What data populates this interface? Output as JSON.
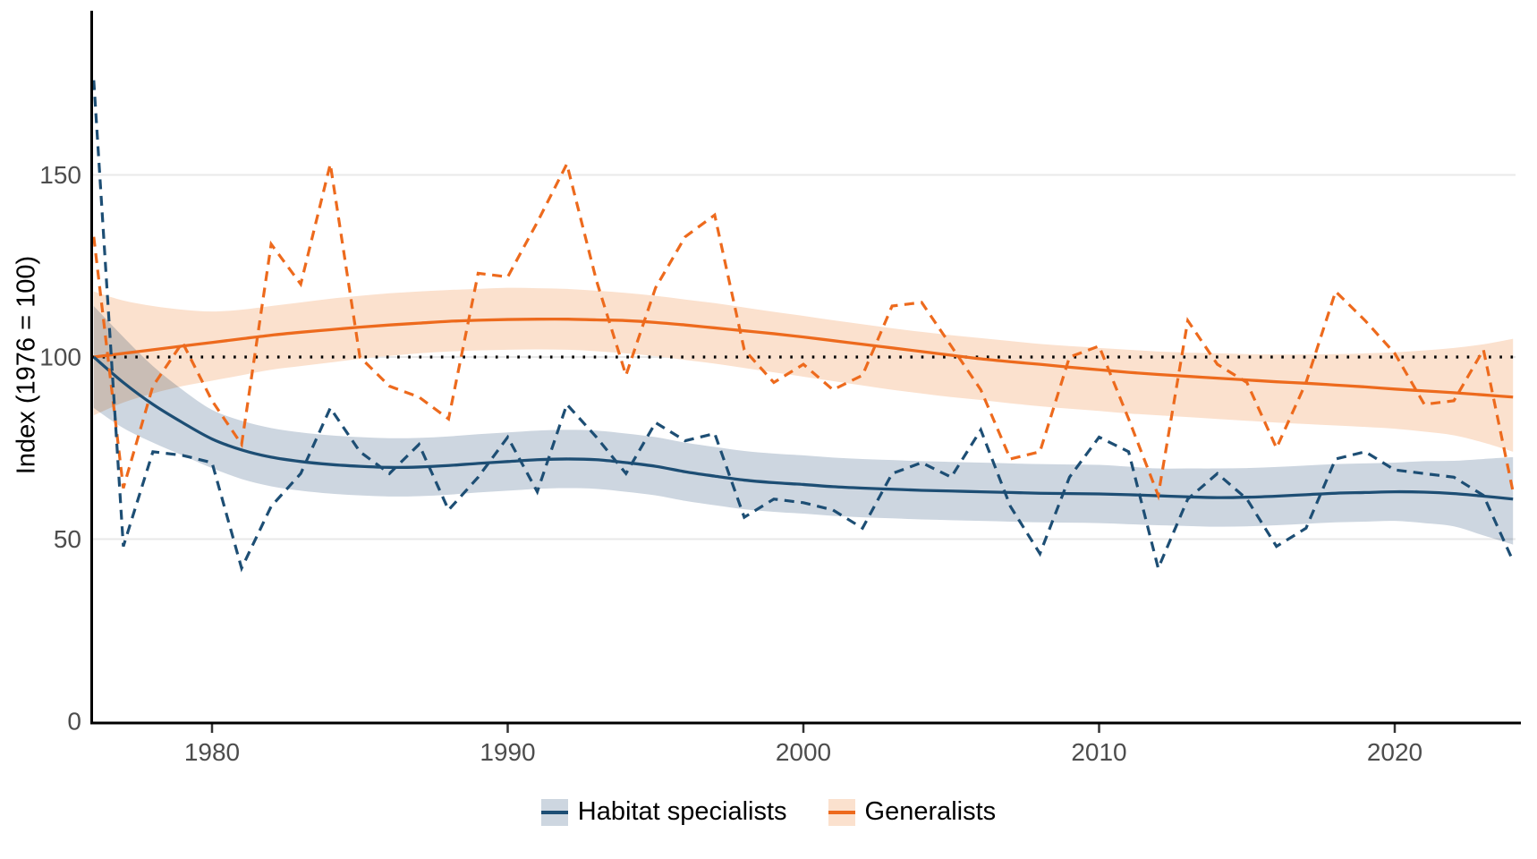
{
  "chart_data": {
    "type": "line",
    "title": "",
    "xlabel": "",
    "ylabel": "Index (1976 = 100)",
    "xlim": [
      1976,
      2024.5
    ],
    "ylim": [
      0,
      195
    ],
    "grid": "horizontal-only",
    "legend_position": "bottom",
    "reference_line": {
      "y": 100,
      "style": "dotted",
      "color": "#000000"
    },
    "x_ticks": [
      {
        "value": 1980,
        "label": "1980"
      },
      {
        "value": 1990,
        "label": "1990"
      },
      {
        "value": 2000,
        "label": "2000"
      },
      {
        "value": 2010,
        "label": "2010"
      },
      {
        "value": 2020,
        "label": "2020"
      }
    ],
    "y_ticks": [
      {
        "value": 0,
        "label": "0"
      },
      {
        "value": 50,
        "label": "50"
      },
      {
        "value": 100,
        "label": "100"
      },
      {
        "value": 150,
        "label": "150"
      }
    ],
    "colors": {
      "background": "#ffffff",
      "grid": "#e9e9e9",
      "axis": "#000000",
      "tick_label": "#4d4d4d"
    },
    "years": [
      1976,
      1977,
      1978,
      1979,
      1980,
      1981,
      1982,
      1983,
      1984,
      1985,
      1986,
      1987,
      1988,
      1989,
      1990,
      1991,
      1992,
      1993,
      1994,
      1995,
      1996,
      1997,
      1998,
      1999,
      2000,
      2001,
      2002,
      2003,
      2004,
      2005,
      2006,
      2007,
      2008,
      2009,
      2010,
      2011,
      2012,
      2013,
      2014,
      2015,
      2016,
      2017,
      2018,
      2019,
      2020,
      2021,
      2022,
      2023,
      2024
    ],
    "series": [
      {
        "name": "Habitat specialists",
        "line_color": "#1d4e74",
        "ribbon_color": "#cdd6e0",
        "raw_style": "dashed",
        "values": [
          176,
          48,
          74,
          73,
          71,
          42,
          59,
          68,
          86,
          74,
          68,
          76,
          58,
          67,
          78,
          63,
          87,
          78,
          68,
          82,
          77,
          79,
          56,
          61,
          60,
          58,
          53,
          68,
          71,
          67,
          80,
          59,
          46,
          67,
          78,
          74,
          42,
          61,
          68,
          61,
          48,
          53,
          72,
          74,
          69,
          68,
          67,
          62,
          44
        ],
        "trend": [
          100,
          93,
          87,
          82,
          77.5,
          74.5,
          72.5,
          71.3,
          70.5,
          70,
          69.7,
          69.8,
          70.2,
          70.8,
          71.3,
          71.8,
          72,
          71.8,
          71,
          70,
          68.5,
          67.3,
          66.2,
          65.5,
          65,
          64.4,
          64,
          63.7,
          63.4,
          63.2,
          63,
          62.8,
          62.6,
          62.5,
          62.4,
          62.2,
          61.9,
          61.6,
          61.4,
          61.5,
          61.8,
          62.2,
          62.6,
          62.8,
          63,
          62.9,
          62.5,
          61.8,
          61
        ],
        "ribbon_low": [
          86,
          80.5,
          76.5,
          73,
          69.5,
          66.5,
          64.5,
          63.3,
          62.5,
          62,
          61.7,
          61.8,
          62.2,
          62.8,
          63.3,
          63.8,
          64,
          63.8,
          63,
          62,
          60.5,
          59.3,
          58.2,
          57.5,
          57,
          56.4,
          56,
          55.7,
          55.4,
          55.2,
          55,
          54.8,
          54.6,
          54.5,
          54.4,
          54.1,
          53.8,
          53.6,
          53.4,
          53.5,
          53.8,
          54.2,
          54.6,
          54.8,
          55,
          54.4,
          53.5,
          51,
          48.5
        ],
        "ribbon_high": [
          114,
          105.5,
          97.5,
          91,
          85.5,
          82.5,
          80.5,
          79.3,
          78.5,
          78,
          77.7,
          77.8,
          78.2,
          78.8,
          79.3,
          79.8,
          80,
          79.8,
          79,
          78,
          76.5,
          75.3,
          74.2,
          73.5,
          73,
          72.4,
          72,
          71.7,
          71.4,
          71.2,
          71,
          70.8,
          70.6,
          70.5,
          70.4,
          69.9,
          69.4,
          69.4,
          69.4,
          69.5,
          69.8,
          70.2,
          70.6,
          70.8,
          71,
          71.4,
          71.5,
          72,
          72.5
        ]
      },
      {
        "name": "Generalists",
        "line_color": "#ed6a1d",
        "ribbon_color": "#fbe1ce",
        "raw_style": "dashed",
        "values": [
          133,
          64,
          92,
          104,
          88,
          76,
          131,
          120,
          153,
          100,
          92,
          89,
          83,
          123,
          122,
          137,
          153,
          121,
          95,
          119,
          133,
          139,
          102,
          93,
          98,
          91,
          95,
          114,
          115,
          103,
          91,
          72,
          74,
          100,
          103,
          83,
          62,
          110,
          98,
          93,
          75,
          93,
          118,
          110,
          101,
          87,
          88,
          102,
          63
        ],
        "trend": [
          100,
          101,
          102,
          103,
          104,
          105,
          106,
          106.8,
          107.5,
          108.2,
          108.8,
          109.3,
          109.8,
          110.1,
          110.3,
          110.4,
          110.4,
          110.2,
          110,
          109.5,
          108.8,
          108,
          107.2,
          106.4,
          105.5,
          104.5,
          103.5,
          102.5,
          101.5,
          100.5,
          99.5,
          98.7,
          98,
          97.2,
          96.5,
          95.8,
          95.2,
          94.7,
          94.2,
          93.7,
          93.2,
          92.8,
          92.3,
          91.8,
          91.2,
          90.7,
          90.2,
          89.6,
          89
        ],
        "ribbon_low": [
          84,
          87.5,
          90,
          92,
          93.5,
          95,
          96.5,
          97.5,
          98.5,
          99.5,
          100.3,
          101,
          101.5,
          101.8,
          102,
          102.1,
          102,
          101.6,
          101,
          100.2,
          99.2,
          98.2,
          97,
          95.8,
          94.6,
          93.4,
          92.2,
          91,
          90,
          89,
          88.2,
          87.3,
          86.5,
          85.8,
          85.2,
          84.5,
          84,
          83.5,
          83,
          82.5,
          82,
          81.6,
          81.2,
          80.8,
          80.3,
          79.5,
          78.5,
          76.5,
          74
        ],
        "ribbon_high": [
          118,
          115.5,
          114,
          113,
          112.5,
          113,
          114,
          115,
          116,
          116.8,
          117.5,
          118,
          118.4,
          118.7,
          119,
          118.9,
          118.7,
          118.2,
          117.6,
          116.8,
          115.8,
          114.8,
          113.6,
          112.4,
          111.3,
          110.1,
          109,
          107.9,
          106.9,
          106,
          105.2,
          104.4,
          103.6,
          103,
          102.5,
          102,
          101.5,
          101.2,
          101,
          100.8,
          100.7,
          100.7,
          100.8,
          101,
          101.3,
          101.8,
          102.5,
          103.5,
          105
        ]
      }
    ]
  }
}
